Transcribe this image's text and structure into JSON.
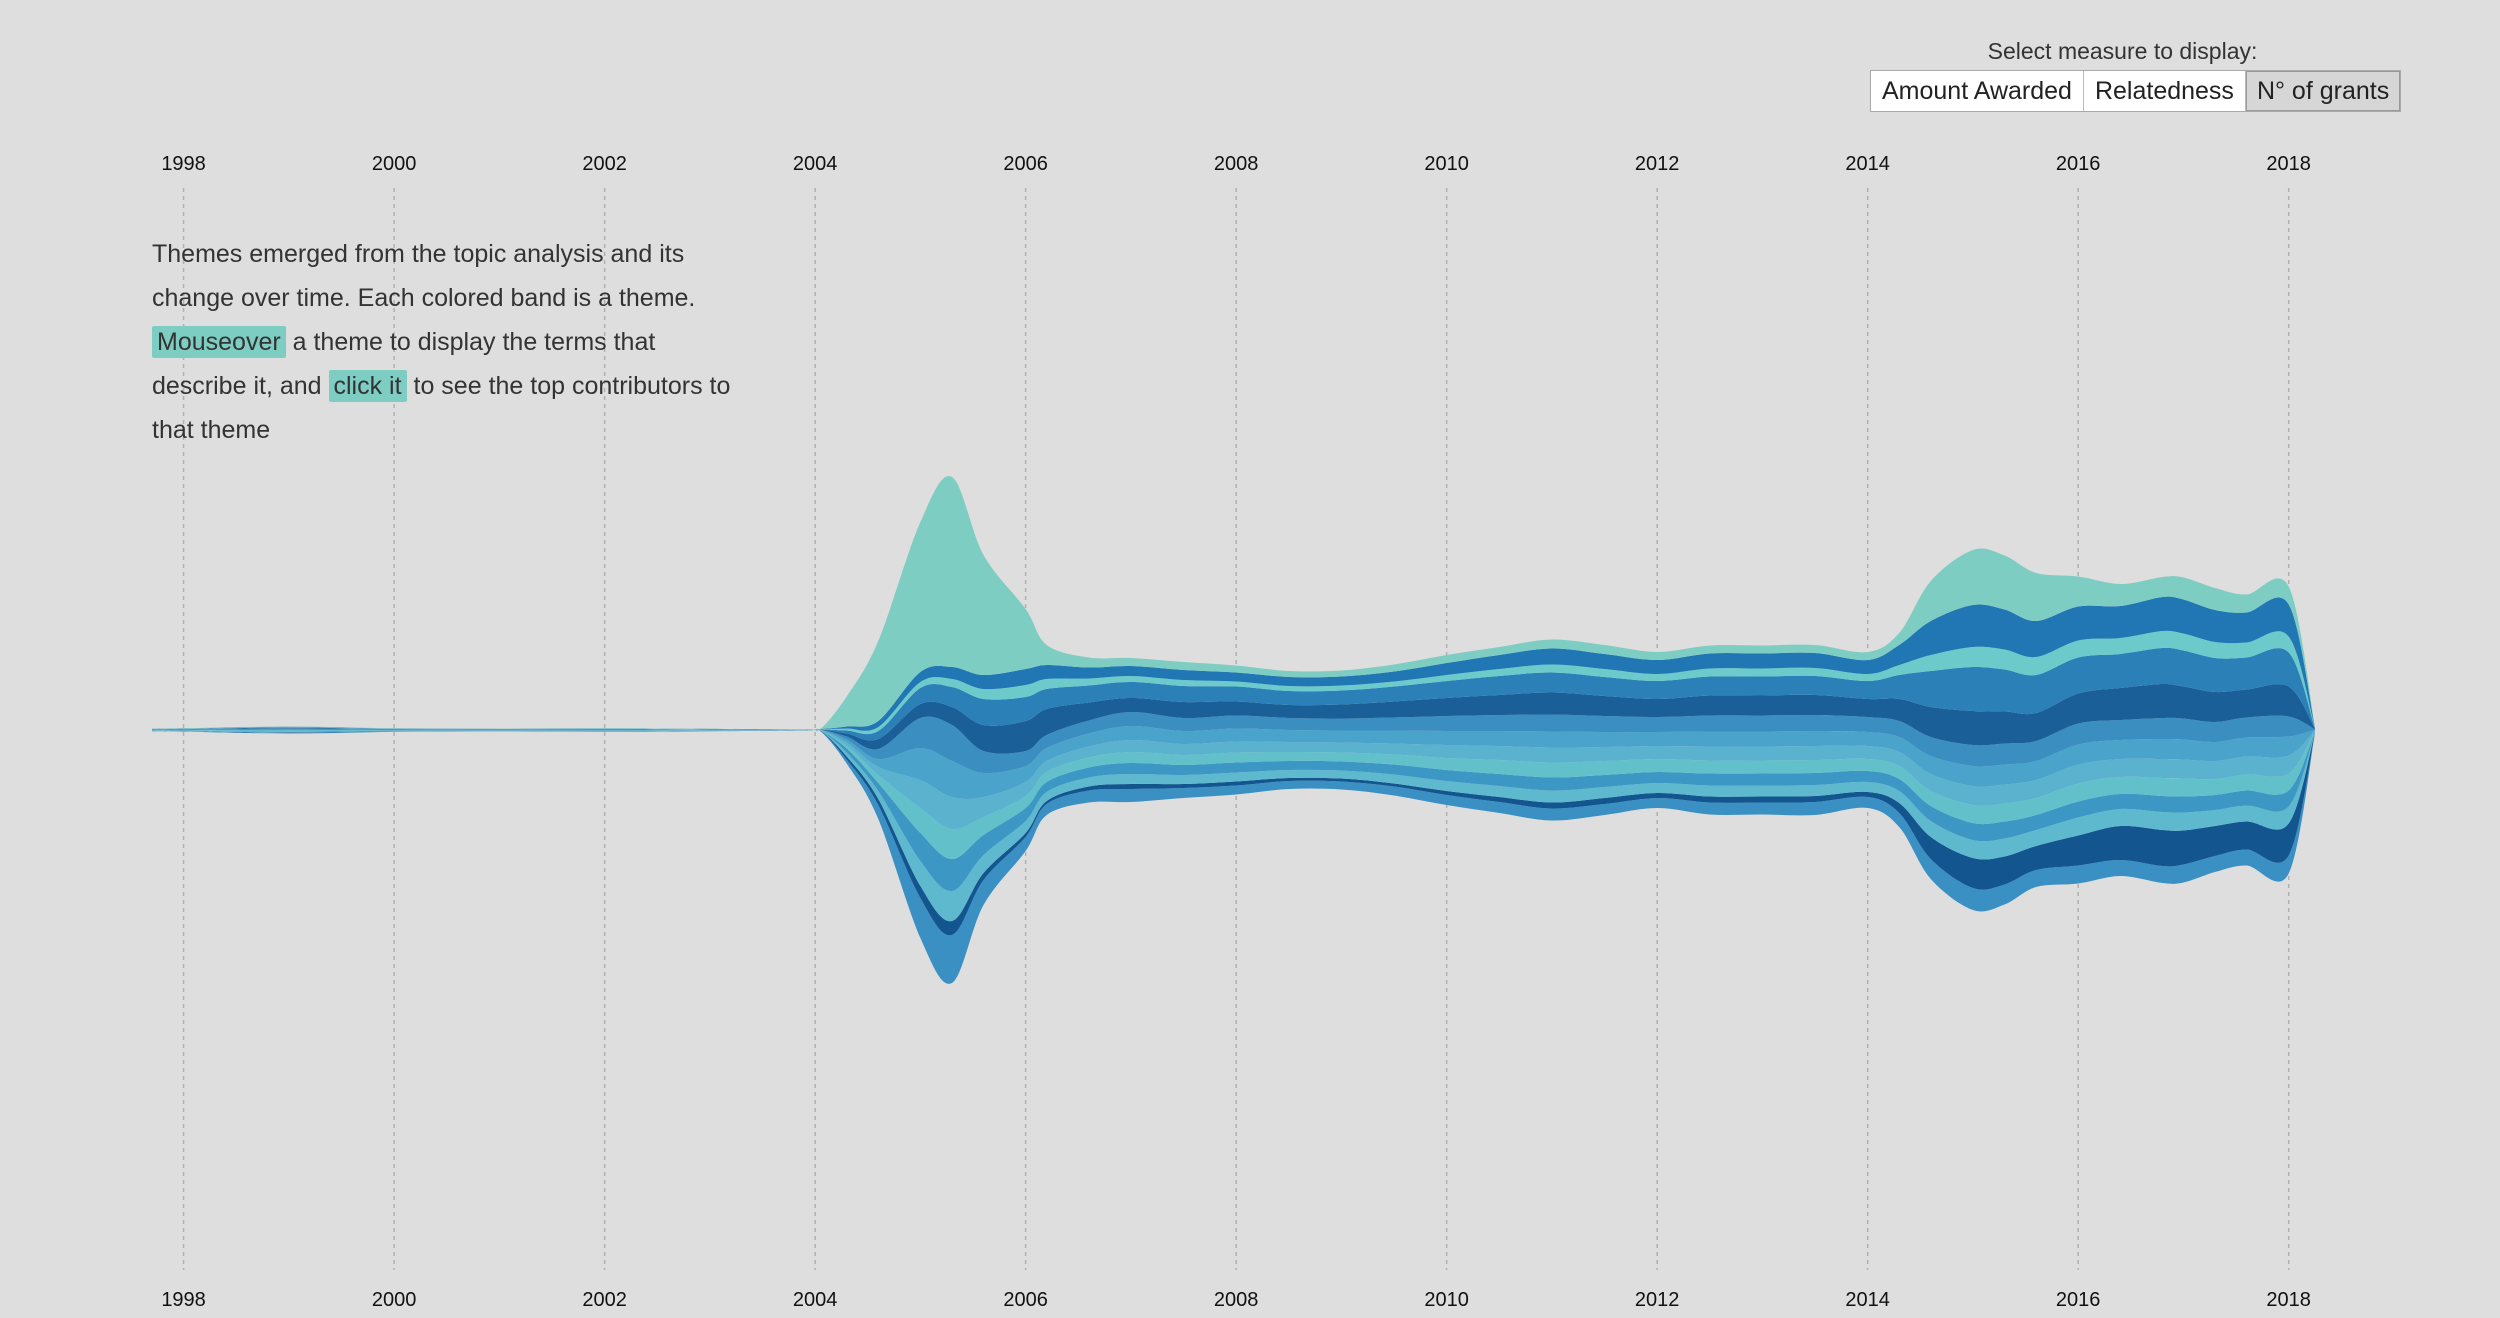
{
  "controls": {
    "label": "Select measure to display:",
    "options": [
      "Amount Awarded",
      "Relatedness",
      "N° of grants"
    ],
    "selected": "N° of grants"
  },
  "intro": {
    "part1": "Themes emerged from the topic analysis and its change over time. Each colored band is a theme.",
    "hl1": "Mouseover",
    "part2": "a theme to display the terms that describe it, and",
    "hl2": "click it",
    "part3": "to see the top contributors to that theme"
  },
  "colors": {
    "background": "#dedede",
    "highlight": "#7ecdc3",
    "bands": [
      "#3a90c2",
      "#13568f",
      "#5eb9cf",
      "#3d97c4",
      "#62c0cb",
      "#5ab2cf",
      "#4aa3cb",
      "#3b8ec0",
      "#1a5f98",
      "#2b80b8",
      "#6dcacb",
      "#2177b4",
      "#7ecdc3"
    ]
  },
  "chart_data": {
    "type": "area",
    "subtype": "streamgraph",
    "xlim": [
      1997.7,
      2018.25
    ],
    "x": [
      1997.7,
      1998,
      1999,
      2000,
      2001,
      2002,
      2003,
      2003.9,
      2004.05,
      2004.3,
      2004.6,
      2005.0,
      2005.3,
      2005.6,
      2006.0,
      2006.2,
      2006.6,
      2007.0,
      2007.5,
      2008.0,
      2008.5,
      2009.0,
      2009.5,
      2010.0,
      2010.5,
      2011.0,
      2011.5,
      2012.0,
      2012.5,
      2013.0,
      2013.5,
      2014.0,
      2014.3,
      2014.6,
      2015.0,
      2015.3,
      2015.6,
      2016.0,
      2016.4,
      2016.8,
      2017.0,
      2017.3,
      2017.6,
      2018.0,
      2018.25
    ],
    "tick_labels": [
      "1998",
      "2000",
      "2002",
      "2004",
      "2006",
      "2008",
      "2010",
      "2012",
      "2014",
      "2016",
      "2018"
    ],
    "tick_values": [
      1998,
      2000,
      2002,
      2004,
      2006,
      2008,
      2010,
      2012,
      2014,
      2016,
      2018
    ],
    "grid": "vertical-dashed",
    "series": [
      {
        "values": [
          0.2,
          0.3,
          0.6,
          0.3,
          0.2,
          0.3,
          0.2,
          0.1,
          0.2,
          4,
          14,
          40,
          48,
          25,
          14,
          11,
          12,
          13,
          10,
          9,
          8,
          8,
          9,
          10,
          11,
          12,
          11,
          10,
          12,
          12,
          13,
          11,
          14,
          20,
          22,
          20,
          17,
          18,
          16,
          17,
          18,
          16,
          16,
          18,
          0.5
        ]
      },
      {
        "values": [
          0.2,
          0.2,
          0.5,
          0.2,
          0.2,
          0.2,
          0.2,
          0.1,
          0.2,
          3,
          6,
          12,
          14,
          7,
          4,
          3,
          4,
          5,
          4,
          4,
          3,
          3,
          3,
          4,
          5,
          6,
          6,
          5,
          6,
          6,
          6,
          5,
          10,
          22,
          30,
          28,
          24,
          30,
          34,
          36,
          34,
          30,
          28,
          32,
          0.5
        ]
      },
      {
        "values": [
          0.2,
          0.3,
          0.6,
          0.3,
          0.2,
          0.3,
          0.2,
          0.1,
          0.2,
          4,
          8,
          25,
          30,
          18,
          12,
          9,
          9,
          10,
          9,
          9,
          8,
          8,
          9,
          10,
          11,
          12,
          11,
          10,
          11,
          11,
          11,
          10,
          12,
          16,
          18,
          18,
          16,
          18,
          17,
          18,
          18,
          16,
          16,
          17,
          0.5
        ]
      },
      {
        "values": [
          0.2,
          0.3,
          0.6,
          0.3,
          0.2,
          0.3,
          0.2,
          0.1,
          0.2,
          4,
          8,
          28,
          32,
          20,
          13,
          10,
          10,
          11,
          10,
          10,
          9,
          9,
          10,
          11,
          12,
          13,
          12,
          11,
          12,
          12,
          12,
          11,
          12,
          15,
          17,
          17,
          15,
          16,
          15,
          16,
          16,
          15,
          15,
          16,
          0.5
        ]
      },
      {
        "values": [
          0.2,
          0.3,
          0.6,
          0.3,
          0.2,
          0.3,
          0.2,
          0.1,
          0.2,
          3,
          8,
          25,
          30,
          18,
          12,
          10,
          10,
          11,
          10,
          10,
          9,
          9,
          10,
          12,
          14,
          15,
          14,
          13,
          13,
          13,
          13,
          12,
          13,
          15,
          18,
          18,
          17,
          18,
          17,
          18,
          18,
          16,
          16,
          17,
          0.5
        ]
      },
      {
        "values": [
          0.2,
          0.3,
          0.6,
          0.3,
          0.2,
          0.3,
          0.2,
          0.1,
          0.2,
          3,
          8,
          28,
          32,
          20,
          14,
          11,
          11,
          12,
          11,
          11,
          10,
          10,
          11,
          13,
          14,
          15,
          14,
          13,
          14,
          14,
          14,
          13,
          14,
          17,
          19,
          19,
          18,
          19,
          18,
          19,
          19,
          18,
          18,
          18,
          0.5
        ]
      },
      {
        "values": [
          0.2,
          0.3,
          0.6,
          0.3,
          0.2,
          0.3,
          0.2,
          0.1,
          0.2,
          3,
          8,
          32,
          36,
          24,
          16,
          13,
          13,
          14,
          13,
          13,
          12,
          12,
          13,
          14,
          15,
          16,
          15,
          14,
          15,
          15,
          15,
          14,
          15,
          18,
          20,
          20,
          19,
          20,
          19,
          20,
          20,
          19,
          19,
          19,
          0.5
        ]
      },
      {
        "values": [
          0.2,
          0.3,
          0.6,
          0.3,
          0.2,
          0.3,
          0.2,
          0.1,
          0.2,
          3,
          10,
          30,
          36,
          22,
          15,
          13,
          13,
          14,
          13,
          13,
          12,
          12,
          13,
          15,
          16,
          17,
          16,
          15,
          16,
          16,
          16,
          15,
          16,
          19,
          21,
          21,
          20,
          21,
          20,
          21,
          21,
          20,
          20,
          20,
          0.5
        ]
      },
      {
        "values": [
          0.2,
          0.3,
          0.6,
          0.3,
          0.2,
          0.3,
          0.2,
          0.1,
          0.2,
          3,
          10,
          14,
          18,
          26,
          30,
          26,
          18,
          14,
          16,
          14,
          13,
          14,
          16,
          18,
          20,
          22,
          20,
          18,
          20,
          20,
          20,
          18,
          22,
          30,
          34,
          32,
          28,
          30,
          32,
          34,
          32,
          30,
          28,
          30,
          0.5
        ]
      },
      {
        "values": [
          0.2,
          0.3,
          0.6,
          0.3,
          0.2,
          0.3,
          0.2,
          0.1,
          0.2,
          3,
          8,
          16,
          20,
          26,
          24,
          20,
          17,
          16,
          16,
          15,
          14,
          14,
          15,
          17,
          19,
          20,
          19,
          18,
          19,
          19,
          19,
          18,
          24,
          36,
          44,
          42,
          38,
          36,
          34,
          36,
          36,
          34,
          32,
          34,
          0.5
        ]
      },
      {
        "values": [
          0.2,
          0.2,
          0.4,
          0.2,
          0.2,
          0.2,
          0.2,
          0.1,
          0.1,
          2,
          4,
          6,
          8,
          10,
          12,
          10,
          7,
          6,
          6,
          5,
          5,
          5,
          5,
          6,
          7,
          8,
          8,
          7,
          8,
          8,
          8,
          7,
          10,
          16,
          20,
          20,
          18,
          17,
          16,
          17,
          17,
          16,
          15,
          16,
          0.5
        ]
      },
      {
        "values": [
          0.2,
          0.2,
          0.4,
          0.2,
          0.2,
          0.2,
          0.2,
          0.1,
          0.1,
          2,
          6,
          10,
          12,
          14,
          16,
          14,
          11,
          10,
          10,
          9,
          9,
          9,
          10,
          12,
          14,
          16,
          15,
          14,
          15,
          15,
          15,
          14,
          20,
          34,
          42,
          40,
          36,
          34,
          32,
          34,
          34,
          32,
          30,
          32,
          0.5
        ]
      },
      {
        "values": [
          0.2,
          0.2,
          0.3,
          0.2,
          0.2,
          0.2,
          0.2,
          0.1,
          0.2,
          30,
          80,
          150,
          190,
          120,
          60,
          20,
          10,
          8,
          8,
          7,
          6,
          6,
          7,
          8,
          8,
          9,
          9,
          8,
          8,
          8,
          8,
          8,
          12,
          40,
          55,
          54,
          48,
          30,
          22,
          20,
          22,
          22,
          18,
          18,
          0.5
        ]
      }
    ]
  }
}
